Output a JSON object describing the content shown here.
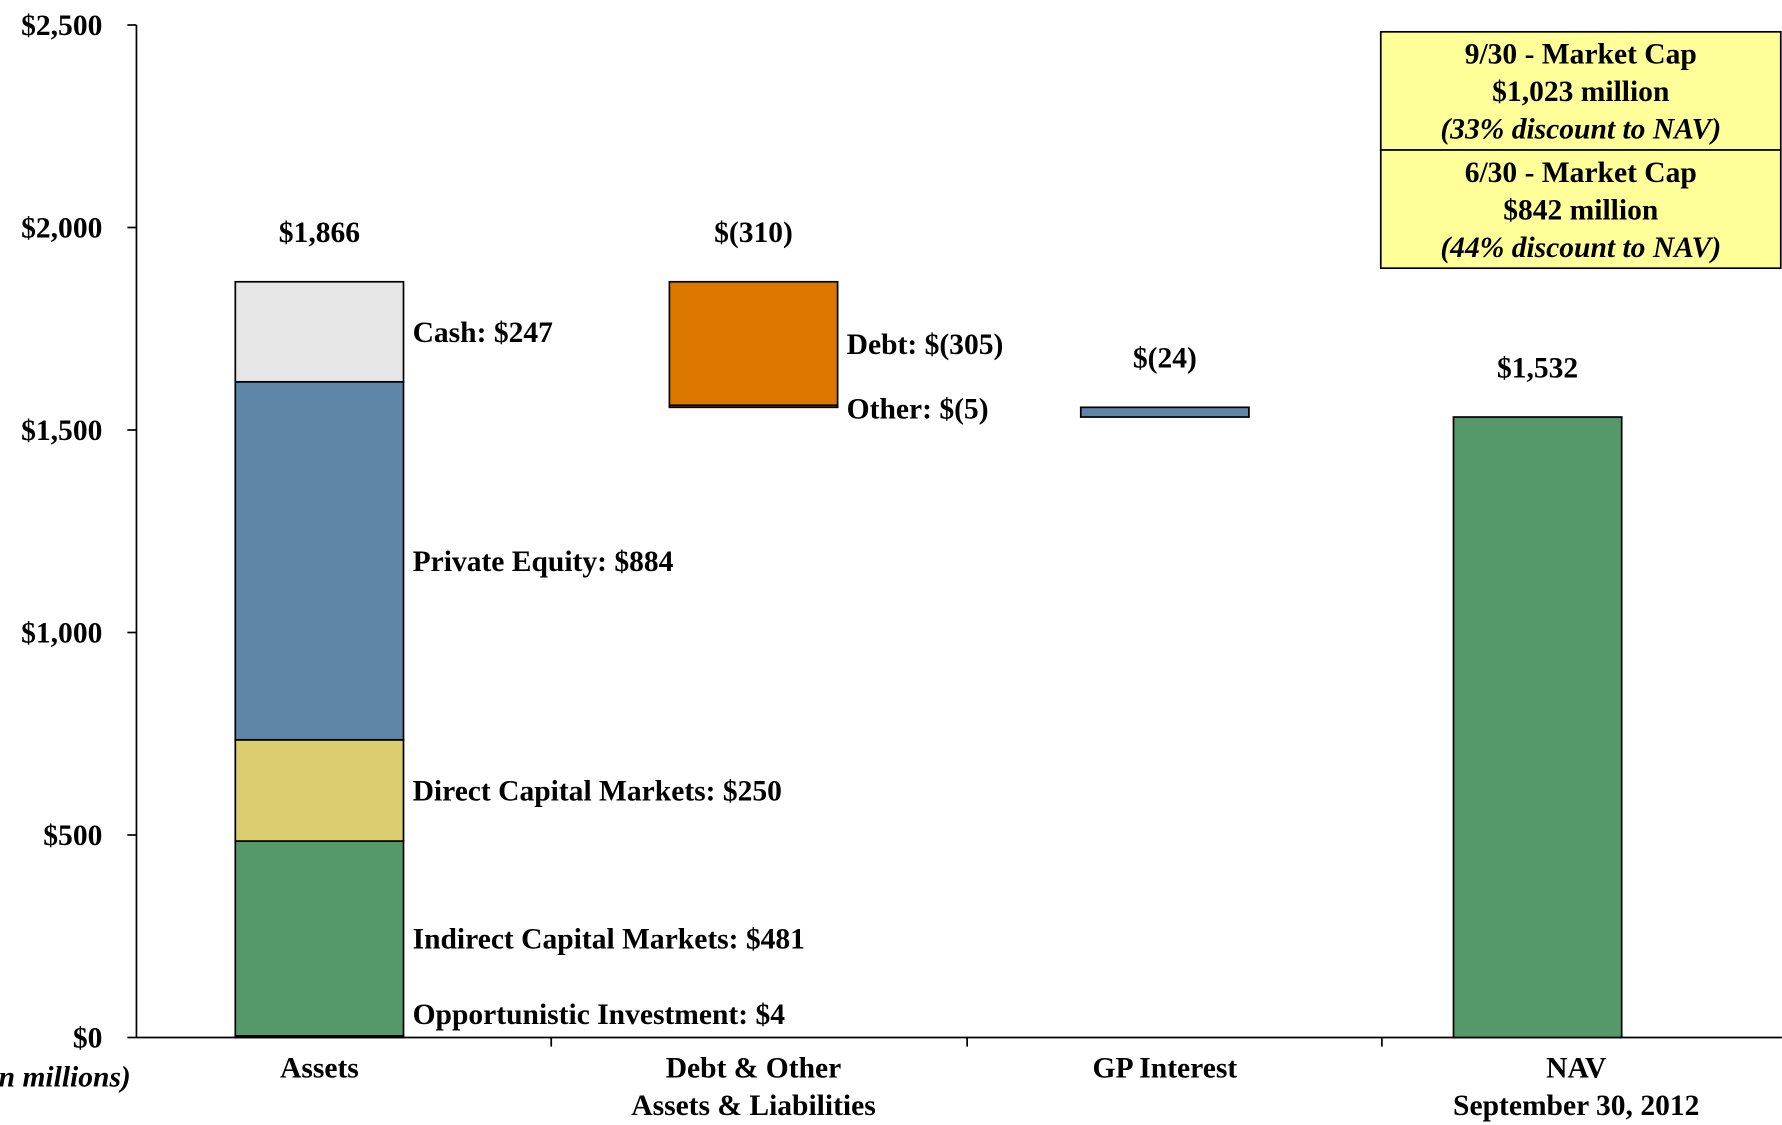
{
  "chart_data": {
    "type": "waterfall",
    "ylim": [
      0,
      2500
    ],
    "yticks": [
      {
        "value": 0,
        "label": "$0"
      },
      {
        "value": 500,
        "label": "$500"
      },
      {
        "value": 1000,
        "label": "$1,000"
      },
      {
        "value": 1500,
        "label": "$1,500"
      },
      {
        "value": 2000,
        "label": "$2,000"
      },
      {
        "value": 2500,
        "label": "$2,500"
      }
    ],
    "y_note": "($ in millions)",
    "categories": [
      "Assets",
      "Debt & Other\nAssets & Liabilities",
      "GP Interest",
      "NAV\nSeptember 30, 2012"
    ],
    "steps": [
      {
        "segments": [
          4,
          481,
          250,
          884,
          247
        ],
        "segment_labels": [
          "Opportunistic Investment: $4",
          "Indirect Capital Markets: $481",
          "Direct Capital Markets: $250",
          "Private Equity: $884",
          "Cash: $247"
        ],
        "colors": [
          "#6b6b6b",
          "#55996a",
          "#dccd6e",
          "#5f86a8",
          "#e6e6e6"
        ],
        "total": 1866,
        "total_label": "$1,866"
      },
      {
        "segments": [
          -305,
          -5
        ],
        "segment_labels": [
          "Debt: $(305)",
          "Other: $(5)"
        ],
        "colors": [
          "#dd7700",
          "#dd7700"
        ],
        "total": -310,
        "total_label": "$(310)"
      },
      {
        "segments": [
          -24
        ],
        "colors": [
          "#5f86a8"
        ],
        "total": -24,
        "total_label": "$(24)"
      },
      {
        "segments": [
          1532
        ],
        "colors": [
          "#55996a"
        ],
        "total": 1532,
        "total_label": "$1,532",
        "is_total": true
      }
    ],
    "annotations": [
      [
        "9/30 - Market Cap",
        "$1,023 million",
        "(33% discount to NAV)"
      ],
      [
        "6/30 - Market Cap",
        "$842 million",
        "(44% discount to NAV)"
      ]
    ],
    "annotation_color": "#ffff99"
  }
}
